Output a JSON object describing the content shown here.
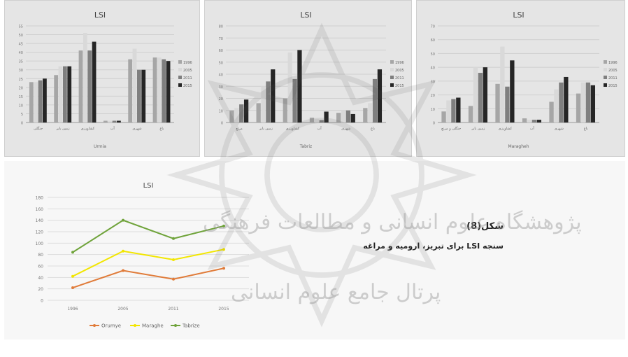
{
  "caption": {
    "figure_label": "شکل(8)",
    "description": "سنجه LSI برای تبریز، ارومیه و مراغه"
  },
  "watermark": {
    "line1": "پژوهشگاه علوم انسانی و مطالعات فرهنگی",
    "line2": "پرتال جامع علوم انسانی"
  },
  "chart_data": [
    {
      "id": "urmia-classes",
      "type": "bar",
      "title": "LSI",
      "xlabel": "Urmia",
      "ylabel": "",
      "ylim": [
        0,
        55
      ],
      "y_ticks": [
        "0",
        "5",
        "10",
        "15",
        "20",
        "25",
        "30",
        "35",
        "40",
        "45",
        "50",
        "55"
      ],
      "categories": [
        "جنگلی",
        "زمین بایر",
        "کشاورزی",
        "آب",
        "شهری",
        "باغ"
      ],
      "colors": [
        "#a6a6a6",
        "#d9d9d9",
        "#7f7f7f",
        "#262626"
      ],
      "series": [
        {
          "name": "1996",
          "values": [
            23,
            27,
            41,
            1,
            36,
            37
          ]
        },
        {
          "name": "2005",
          "values": [
            23,
            32,
            51,
            1,
            42,
            37
          ]
        },
        {
          "name": "2011",
          "values": [
            24,
            32,
            41,
            1,
            30,
            36
          ]
        },
        {
          "name": "2015",
          "values": [
            25,
            32,
            46,
            1,
            30,
            35
          ]
        }
      ]
    },
    {
      "id": "tabriz-classes",
      "type": "bar",
      "title": "LSI",
      "xlabel": "Tabriz",
      "ylabel": "",
      "ylim": [
        0,
        80
      ],
      "y_ticks": [
        "0",
        "10",
        "20",
        "30",
        "40",
        "50",
        "60",
        "70",
        "80"
      ],
      "categories": [
        "مرتع",
        "زمین بایر",
        "کشاورزی",
        "آب",
        "شهری",
        "باغ"
      ],
      "colors": [
        "#a6a6a6",
        "#d9d9d9",
        "#7f7f7f",
        "#262626"
      ],
      "series": [
        {
          "name": "1996",
          "values": [
            10,
            16,
            20,
            4,
            8,
            12
          ]
        },
        {
          "name": "2005",
          "values": [
            12,
            30,
            58,
            3,
            10,
            16
          ]
        },
        {
          "name": "2011",
          "values": [
            15,
            34,
            36,
            2,
            10,
            36
          ]
        },
        {
          "name": "2015",
          "values": [
            19,
            44,
            60,
            9,
            7,
            44
          ]
        }
      ]
    },
    {
      "id": "maragheh-classes",
      "type": "bar",
      "title": "LSI",
      "xlabel": "Maragheh",
      "ylabel": "",
      "ylim": [
        0,
        70
      ],
      "y_ticks": [
        "0",
        "10",
        "20",
        "30",
        "40",
        "50",
        "60",
        "70"
      ],
      "categories": [
        "جنگلی و مرتع",
        "زمین بایر",
        "کشاورزی",
        "آب",
        "شهری",
        "باغ"
      ],
      "colors": [
        "#a6a6a6",
        "#d9d9d9",
        "#7f7f7f",
        "#262626"
      ],
      "series": [
        {
          "name": "1996",
          "values": [
            8,
            12,
            28,
            3,
            15,
            21
          ]
        },
        {
          "name": "2005",
          "values": [
            16,
            40,
            55,
            2,
            24,
            29
          ]
        },
        {
          "name": "2011",
          "values": [
            17,
            36,
            26,
            2,
            29,
            29
          ]
        },
        {
          "name": "2015",
          "values": [
            18,
            40,
            45,
            2,
            33,
            27
          ]
        }
      ]
    },
    {
      "id": "lsi-line",
      "type": "line",
      "title": "LSI",
      "xlabel": "",
      "ylabel": "",
      "ylim": [
        0,
        180
      ],
      "y_ticks": [
        "0",
        "20",
        "40",
        "60",
        "80",
        "100",
        "120",
        "140",
        "160",
        "180"
      ],
      "categories": [
        "1996",
        "2005",
        "2011",
        "2015"
      ],
      "series": [
        {
          "name": "Orumye",
          "color": "#e07b39",
          "values": [
            22,
            52,
            37,
            56
          ]
        },
        {
          "name": "Maraghe",
          "color": "#f2e600",
          "values": [
            42,
            86,
            71,
            89
          ]
        },
        {
          "name": "Tabrize",
          "color": "#6fa33a",
          "values": [
            84,
            140,
            108,
            130
          ]
        }
      ]
    }
  ]
}
